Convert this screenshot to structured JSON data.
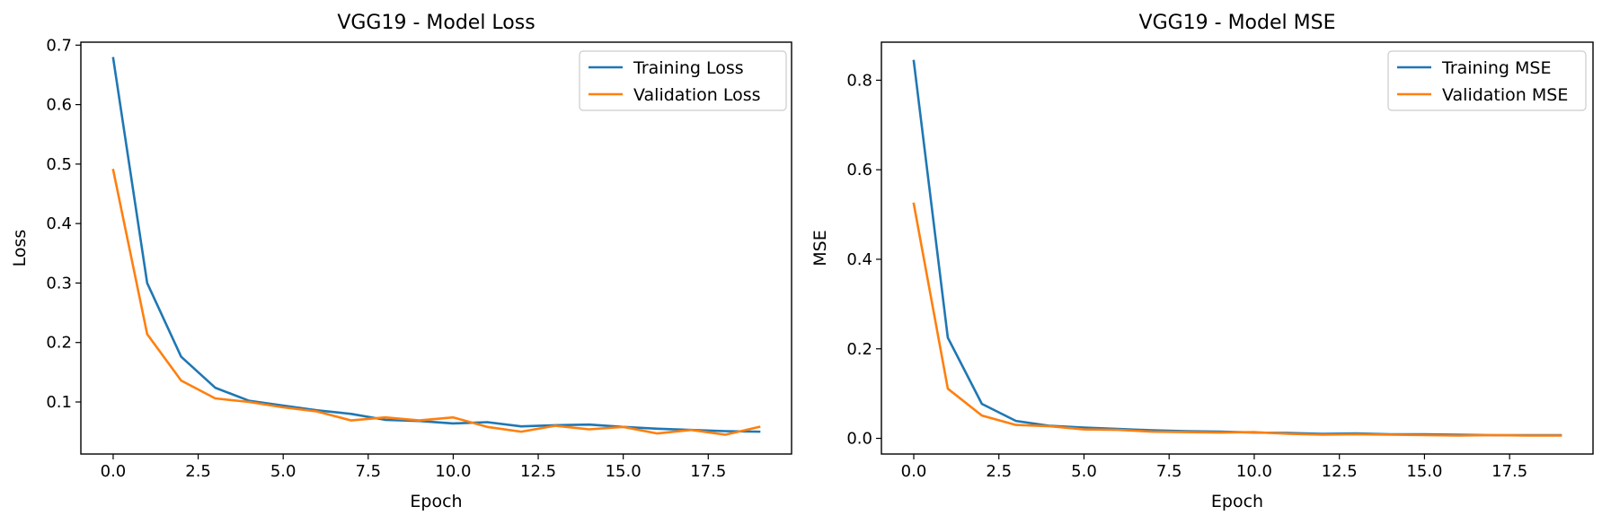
{
  "colors": {
    "training": "#1f77b4",
    "validation": "#ff7f0e",
    "frame": "#000000",
    "legend_border": "#cccccc"
  },
  "chart_data": [
    {
      "type": "line",
      "title": "VGG19 - Model Loss",
      "xlabel": "Epoch",
      "ylabel": "Loss",
      "xlim": [
        -0.95,
        19.95
      ],
      "ylim": [
        0.0125,
        0.705
      ],
      "xticks": [
        0.0,
        2.5,
        5.0,
        7.5,
        10.0,
        12.5,
        15.0,
        17.5
      ],
      "xtick_labels": [
        "0.0",
        "2.5",
        "5.0",
        "7.5",
        "10.0",
        "12.5",
        "15.0",
        "17.5"
      ],
      "yticks": [
        0.1,
        0.2,
        0.3,
        0.4,
        0.5,
        0.6,
        0.7
      ],
      "ytick_labels": [
        "0.1",
        "0.2",
        "0.3",
        "0.4",
        "0.5",
        "0.6",
        "0.7"
      ],
      "grid": false,
      "legend_position": "top-right",
      "x": [
        0,
        1,
        2,
        3,
        4,
        5,
        6,
        7,
        8,
        9,
        10,
        11,
        12,
        13,
        14,
        15,
        16,
        17,
        18,
        19
      ],
      "series": [
        {
          "name": "Training Loss",
          "color_key": "training",
          "values": [
            0.678,
            0.3,
            0.176,
            0.124,
            0.102,
            0.094,
            0.086,
            0.08,
            0.07,
            0.068,
            0.064,
            0.066,
            0.059,
            0.061,
            0.062,
            0.058,
            0.055,
            0.053,
            0.051,
            0.05
          ]
        },
        {
          "name": "Validation Loss",
          "color_key": "validation",
          "values": [
            0.49,
            0.214,
            0.136,
            0.106,
            0.1,
            0.091,
            0.084,
            0.069,
            0.074,
            0.069,
            0.074,
            0.058,
            0.05,
            0.06,
            0.054,
            0.058,
            0.047,
            0.053,
            0.045,
            0.058
          ]
        }
      ]
    },
    {
      "type": "line",
      "title": "VGG19 - Model MSE",
      "xlabel": "Epoch",
      "ylabel": "MSE",
      "xlim": [
        -0.95,
        19.95
      ],
      "ylim": [
        -0.035,
        0.885
      ],
      "xticks": [
        0.0,
        2.5,
        5.0,
        7.5,
        10.0,
        12.5,
        15.0,
        17.5
      ],
      "xtick_labels": [
        "0.0",
        "2.5",
        "5.0",
        "7.5",
        "10.0",
        "12.5",
        "15.0",
        "17.5"
      ],
      "yticks": [
        0.0,
        0.2,
        0.4,
        0.6,
        0.8
      ],
      "ytick_labels": [
        "0.0",
        "0.2",
        "0.4",
        "0.6",
        "0.8"
      ],
      "grid": false,
      "legend_position": "top-right",
      "x": [
        0,
        1,
        2,
        3,
        4,
        5,
        6,
        7,
        8,
        9,
        10,
        11,
        12,
        13,
        14,
        15,
        16,
        17,
        18,
        19
      ],
      "series": [
        {
          "name": "Training MSE",
          "color_key": "training",
          "values": [
            0.843,
            0.225,
            0.077,
            0.039,
            0.028,
            0.024,
            0.021,
            0.018,
            0.016,
            0.015,
            0.013,
            0.012,
            0.01,
            0.011,
            0.009,
            0.009,
            0.008,
            0.007,
            0.007,
            0.007
          ]
        },
        {
          "name": "Validation MSE",
          "color_key": "validation",
          "values": [
            0.524,
            0.111,
            0.051,
            0.03,
            0.027,
            0.02,
            0.019,
            0.015,
            0.014,
            0.013,
            0.014,
            0.01,
            0.008,
            0.009,
            0.008,
            0.007,
            0.006,
            0.007,
            0.006,
            0.006
          ]
        }
      ]
    }
  ]
}
